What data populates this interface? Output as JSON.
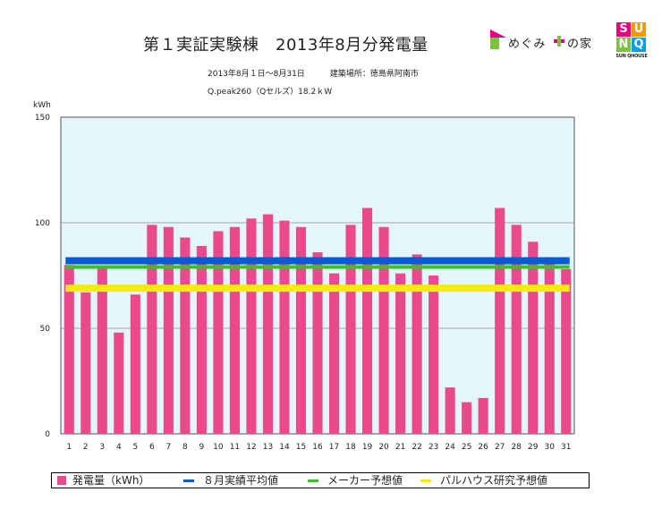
{
  "header": {
    "title": "第１実証実験棟　2013年8月分発電量",
    "period": "2013年8月１日～8月31日",
    "location": "建築場所：徳島県阿南市",
    "system": "Q.peak260（Qセルズ）18.2ｋW"
  },
  "logos": {
    "left_text1": "めぐみ",
    "left_text2": "の家",
    "right_letters": [
      "S",
      "U",
      "N",
      "Q"
    ],
    "right_brand": "SUN QHOUSE"
  },
  "chart_data": {
    "type": "bar",
    "ylabel": "kWh",
    "ylim": [
      0,
      150
    ],
    "yticks": [
      0,
      50,
      100,
      150
    ],
    "categories": [
      "1",
      "2",
      "3",
      "4",
      "5",
      "6",
      "7",
      "8",
      "9",
      "10",
      "11",
      "12",
      "13",
      "14",
      "15",
      "16",
      "17",
      "18",
      "19",
      "20",
      "21",
      "22",
      "23",
      "24",
      "25",
      "26",
      "27",
      "28",
      "29",
      "30",
      "31"
    ],
    "series": [
      {
        "name": "発電量（kWh）",
        "color": "#ea4a8c",
        "values": [
          80,
          67,
          79,
          48,
          66,
          99,
          98,
          93,
          89,
          96,
          98,
          102,
          104,
          101,
          98,
          86,
          76,
          99,
          107,
          98,
          76,
          85,
          75,
          22,
          15,
          17,
          107,
          99,
          91,
          81,
          78
        ]
      }
    ],
    "reference_lines": [
      {
        "name": "８月実績平均値",
        "color": "#0a5ad6",
        "value": 82
      },
      {
        "name": "メーカー予想値",
        "color": "#3bbf2c",
        "value": 79
      },
      {
        "name": "パルハウス研究予想値",
        "color": "#f5e81c",
        "value": 69
      }
    ],
    "plot_background": "#e4f6fb",
    "grid": true
  },
  "legend": [
    {
      "kind": "box",
      "label": "発電量（kWh）",
      "color": "#ea4a8c"
    },
    {
      "kind": "line",
      "label": "８月実績平均値",
      "color": "#0a5ad6"
    },
    {
      "kind": "line",
      "label": "メーカー予想値",
      "color": "#3bbf2c"
    },
    {
      "kind": "line",
      "label": "パルハウス研究予想値",
      "color": "#f5e81c"
    }
  ]
}
